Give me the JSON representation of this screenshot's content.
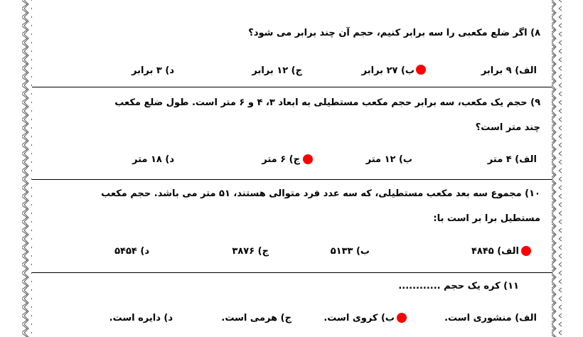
{
  "questions": [
    {
      "lines": [
        "۸) اگر ضلع مکعبی را سه برابر کنیم، حجم آن چند برابر می شود؟"
      ],
      "options": [
        "الف) ۹ برابر",
        "ب) ۲۷ برابر",
        "ج) ۱۲ برابر",
        "د) ۳ برابر"
      ]
    },
    {
      "lines": [
        "۹) حجم یک مکعب، سه برابر حجم مکعب مستطیلی به ابعاد ۳، ۴ و ۶ متر است. طول ضلع مکعب",
        "چند متر است؟"
      ],
      "options": [
        "الف) ۴ متر",
        "ب) ۱۲ متر",
        "ج) ۶ متر",
        "د) ۱۸ متر"
      ]
    },
    {
      "lines": [
        "۱۰) مجموع سه بعد مکعب مستطیلی، که سه عدد فرد متوالی هستند، ۵۱ متر می باشد. حجم مکعب",
        "مستطیل برا بر است با:"
      ],
      "options": [
        "الف) ۴۸۴۵",
        "ب) ۵۱۳۳",
        "ج) ۳۸۷۶",
        "د) ۵۴۵۴"
      ]
    },
    {
      "lines": [
        "۱۱) کره یک حجم ............"
      ],
      "options": [
        "الف) منشوری است.",
        "ب) کروی است.",
        "ج) هرمی است.",
        "د) دایره است."
      ]
    }
  ]
}
